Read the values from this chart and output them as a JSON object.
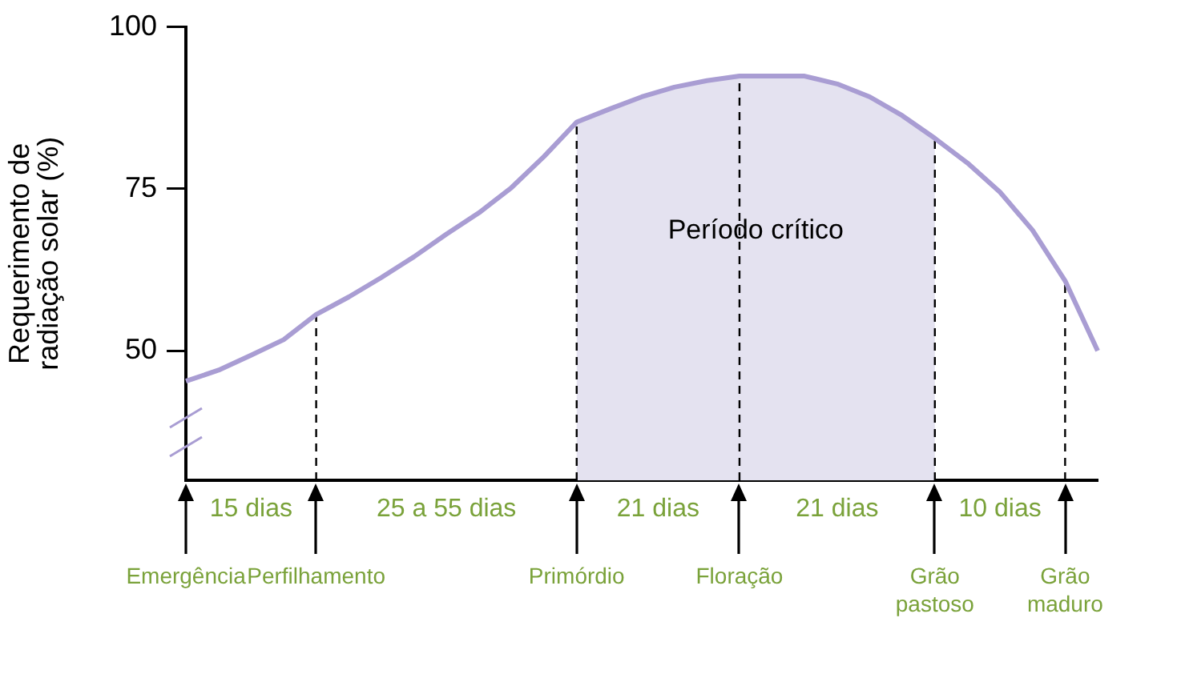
{
  "chart_data": {
    "type": "line",
    "ylabel": "Requerimento de radiação solar (%)",
    "categories": [
      "Emergência",
      null,
      null,
      null,
      "Perfilhamento",
      null,
      null,
      null,
      null,
      null,
      null,
      null,
      "Primórdio",
      null,
      null,
      null,
      null,
      "Floração",
      null,
      null,
      null,
      null,
      null,
      "Grão pastoso",
      null,
      null,
      null,
      "Grão maduro",
      null
    ],
    "values": [
      45.3,
      47,
      49.3,
      51.7,
      55.6,
      58.3,
      61.3,
      64.5,
      68,
      71.3,
      75.2,
      80,
      85.3,
      87.3,
      89.2,
      90.7,
      91.7,
      92.4,
      92.4,
      92.4,
      91.2,
      89.2,
      86.3,
      82.8,
      79,
      74.5,
      68.6,
      60.8,
      50
    ],
    "color": "#a99dd3",
    "ylim": [
      30,
      100
    ],
    "yticks": [
      50,
      75,
      100
    ],
    "grid": false,
    "legend": false,
    "ref_lines": [
      {
        "axis": "x",
        "value": "Perfilhamento",
        "line_style": "dashed",
        "color": "#000000"
      },
      {
        "axis": "x",
        "value": "Primórdio",
        "line_style": "dashed",
        "color": "#000000"
      },
      {
        "axis": "x",
        "value": "Floração",
        "line_style": "dashed",
        "color": "#000000"
      },
      {
        "axis": "x",
        "value": "Grão pastoso",
        "line_style": "dashed",
        "color": "#000000"
      },
      {
        "axis": "x",
        "value": "Grão maduro",
        "line_style": "dashed",
        "color": "#000000"
      }
    ],
    "bands": [
      {
        "axis": "x",
        "from": "Primórdio",
        "to": "Grão pastoso",
        "label": "Período crítico",
        "color": "#e4e2f0"
      }
    ],
    "annotations": [
      "15 dias",
      "25 a 55 dias",
      "21 dias",
      "21 dias",
      "10 dias"
    ]
  }
}
